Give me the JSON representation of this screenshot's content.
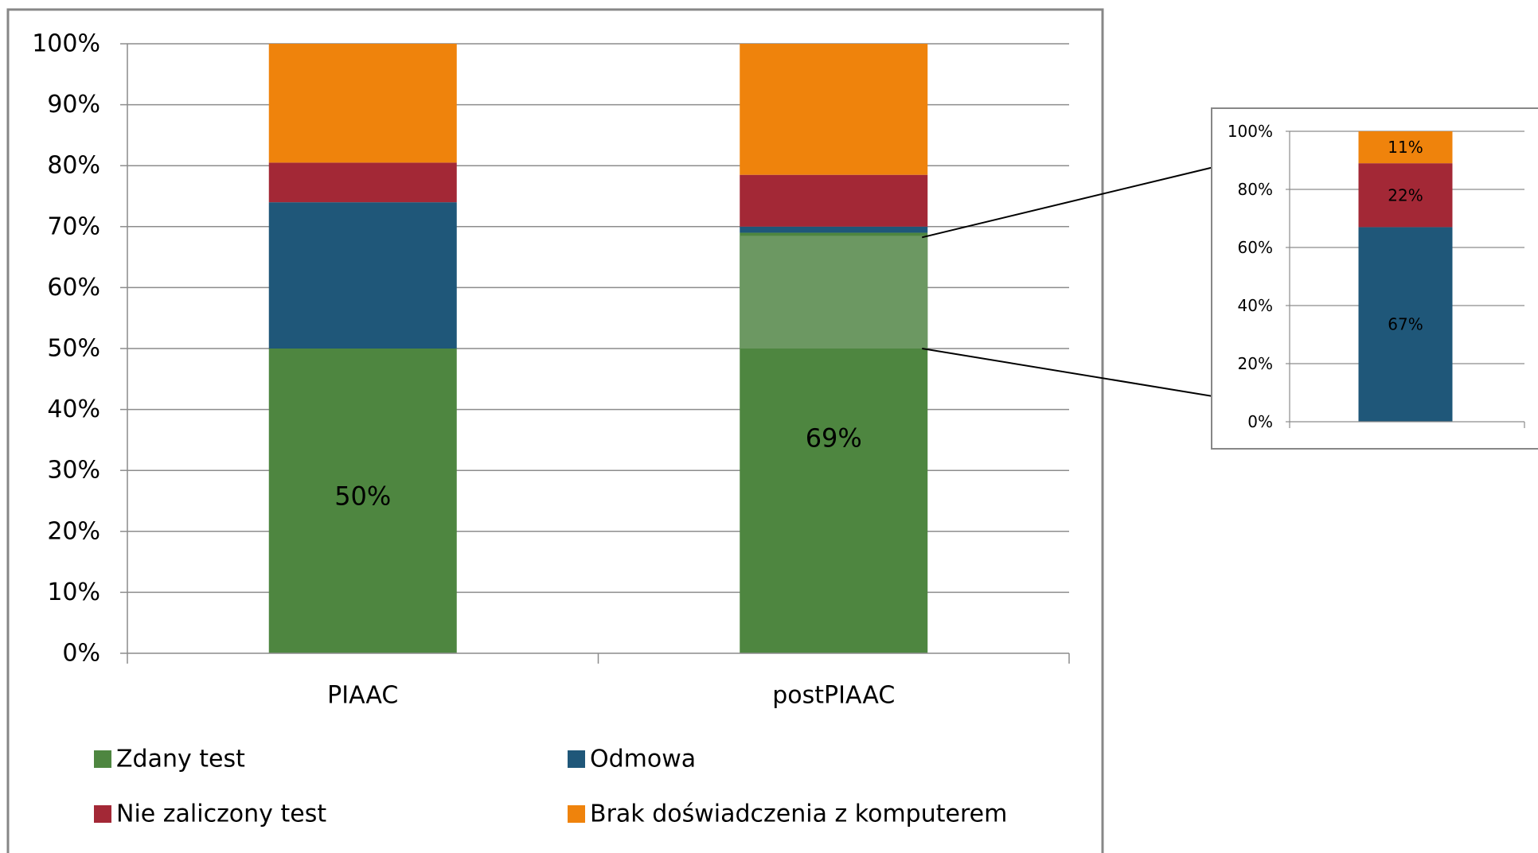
{
  "chart_data": [
    {
      "type": "bar",
      "stacked": true,
      "categories": [
        "PIAAC",
        "postPIAAC"
      ],
      "series": [
        {
          "name": "Zdany test",
          "values": [
            50,
            69
          ],
          "color": "#4e8640",
          "data_labels": [
            "50%",
            "69%"
          ]
        },
        {
          "name": "Odmowa",
          "values": [
            24,
            1
          ],
          "color": "#1f5779",
          "data_labels": [
            "",
            ""
          ]
        },
        {
          "name": "Nie zaliczony test",
          "values": [
            6.5,
            8.5
          ],
          "color": "#a32836",
          "data_labels": [
            "",
            ""
          ]
        },
        {
          "name": "Brak doświadczenia z komputerem",
          "values": [
            19.5,
            21.5
          ],
          "color": "#ef830c",
          "data_labels": [
            "",
            ""
          ]
        }
      ],
      "highlight": {
        "category": "postPIAAC",
        "from": 50,
        "to": 68.5,
        "color": "#6c9862"
      },
      "ylim": [
        0,
        100
      ],
      "yticks": [
        "0%",
        "10%",
        "20%",
        "30%",
        "40%",
        "50%",
        "60%",
        "70%",
        "80%",
        "90%",
        "100%"
      ],
      "grid": true,
      "legend": {
        "position": "bottom",
        "items": [
          "Zdany test",
          "Odmowa",
          "Nie zaliczony test",
          "Brak doświadczenia z komputerem"
        ]
      }
    },
    {
      "type": "bar",
      "stacked": true,
      "categories": [
        ""
      ],
      "series": [
        {
          "name": "",
          "values": [
            67
          ],
          "color": "#1f5779",
          "data_labels": [
            "67%"
          ]
        },
        {
          "name": "",
          "values": [
            22
          ],
          "color": "#a32836",
          "data_labels": [
            "22%"
          ]
        },
        {
          "name": "",
          "values": [
            11
          ],
          "color": "#ef830c",
          "data_labels": [
            "11%"
          ]
        }
      ],
      "ylim": [
        0,
        100
      ],
      "yticks": [
        "0%",
        "20%",
        "40%",
        "60%",
        "80%",
        "100%"
      ],
      "grid": true
    }
  ]
}
